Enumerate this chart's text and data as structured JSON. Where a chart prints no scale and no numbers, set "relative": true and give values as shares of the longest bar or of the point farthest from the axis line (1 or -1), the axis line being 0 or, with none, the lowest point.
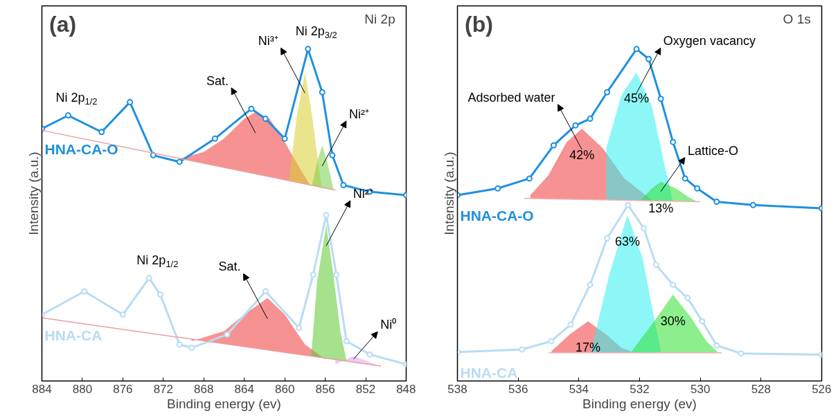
{
  "chart_data": [
    {
      "type": "line",
      "title": "(a)",
      "subtitle": "Ni 2p",
      "xlabel": "Binding energy (ev)",
      "ylabel": "Intensity (a.u.)",
      "relative": true,
      "xlim": [
        884,
        848
      ],
      "xticks": [
        884,
        880,
        876,
        872,
        868,
        864,
        860,
        856,
        852,
        848
      ],
      "series": [
        {
          "name": "HNA-CA-O",
          "color": "#1e90e0",
          "marker": "circle",
          "x": [
            884.0,
            881.4,
            878.1,
            875.3,
            873.0,
            870.4,
            866.9,
            863.3,
            861.9,
            860.0,
            857.7,
            856.3,
            855.3,
            854.2,
            851.6,
            848.0
          ],
          "values": [
            0.76,
            0.8,
            0.75,
            0.84,
            0.68,
            0.66,
            0.73,
            0.82,
            0.79,
            0.73,
            1.0,
            0.87,
            0.68,
            0.59,
            0.57,
            0.56
          ]
        },
        {
          "name": "HNA-CA",
          "color": "#b8dcf5",
          "marker": "circle",
          "x": [
            884.0,
            879.8,
            876.0,
            873.4,
            872.3,
            870.4,
            869.2,
            865.7,
            861.9,
            858.6,
            857.2,
            855.9,
            854.9,
            853.9,
            851.6,
            848.0
          ],
          "values": [
            0.2,
            0.27,
            0.2,
            0.31,
            0.26,
            0.11,
            0.1,
            0.14,
            0.27,
            0.16,
            0.32,
            0.5,
            0.32,
            0.12,
            0.08,
            0.05
          ]
        },
        {
          "type": "line",
          "color": "#e8a0a0",
          "x": [
            884,
            855
          ],
          "values": [
            0.755,
            0.575
          ]
        },
        {
          "type": "line",
          "color": "#e8a0a0",
          "x": [
            884,
            850.5
          ],
          "values": [
            0.19,
            0.045
          ]
        },
        {
          "type": "area",
          "name": "Sat.",
          "color": "#f03838",
          "x": [
            870.4,
            868,
            866,
            864,
            862.9,
            861.5,
            860,
            858.5,
            857.5
          ],
          "values": [
            0.67,
            0.69,
            0.73,
            0.79,
            0.81,
            0.79,
            0.72,
            0.64,
            0.59
          ]
        },
        {
          "type": "area",
          "name": "Ni³⁺",
          "color": "#d8d030",
          "x": [
            859.6,
            858.8,
            858.0,
            857.3,
            856.4
          ],
          "values": [
            0.6,
            0.8,
            0.93,
            0.8,
            0.59
          ]
        },
        {
          "type": "area",
          "name": "Ni²⁺",
          "color": "#78d048",
          "x": [
            857.3,
            856.8,
            856.3,
            855.8,
            855.2
          ],
          "values": [
            0.59,
            0.66,
            0.71,
            0.66,
            0.58
          ]
        },
        {
          "type": "area",
          "name": "Sat.",
          "color": "#f03838",
          "x": [
            869.2,
            866,
            864,
            861.7,
            860,
            858,
            856
          ],
          "values": [
            0.12,
            0.15,
            0.2,
            0.25,
            0.2,
            0.11,
            0.065
          ]
        },
        {
          "type": "area",
          "name": "Ni²⁺",
          "color": "#5cc830",
          "x": [
            857.4,
            856.8,
            855.9,
            855.2,
            854.5,
            853.9
          ],
          "values": [
            0.07,
            0.3,
            0.47,
            0.32,
            0.15,
            0.06
          ]
        },
        {
          "type": "area",
          "name": "Ni⁰",
          "color": "#e0a0e8",
          "x": [
            855,
            853.2,
            851
          ],
          "values": [
            0.05,
            0.075,
            0.05
          ]
        }
      ],
      "annotations": [
        {
          "text": "Ni 2p$_{1/2}$",
          "x": 881.4,
          "y": 0.8
        },
        {
          "text": "Ni 2p$_{3/2}$",
          "x": 857.7,
          "y": 1.0
        },
        {
          "text": "Ni 2p$_{1/2}$",
          "x": 873.4,
          "y": 0.31
        }
      ]
    },
    {
      "type": "line",
      "title": "(b)",
      "subtitle": "O 1s",
      "xlabel": "Binding energy (ev)",
      "ylabel": "Intensity (a.u.)",
      "relative": true,
      "xlim": [
        538,
        526
      ],
      "xticks": [
        538,
        536,
        534,
        532,
        530,
        528,
        526
      ],
      "series": [
        {
          "name": "HNA-CA-O",
          "color": "#1e90e0",
          "marker": "circle",
          "x": [
            538.0,
            536.67,
            535.63,
            534.83,
            534.11,
            533.63,
            533.07,
            532.1,
            531.7,
            531.3,
            530.9,
            530.5,
            530.1,
            529.46,
            528.26,
            526.0
          ],
          "values": [
            0.56,
            0.58,
            0.61,
            0.71,
            0.77,
            0.79,
            0.87,
            1.0,
            0.97,
            0.85,
            0.72,
            0.61,
            0.58,
            0.54,
            0.53,
            0.52
          ]
        },
        {
          "name": "HNA-CA",
          "color": "#b8dcf5",
          "marker": "circle",
          "x": [
            538.0,
            535.87,
            534.91,
            534.27,
            533.63,
            533.07,
            532.38,
            531.86,
            531.46,
            530.9,
            530.42,
            529.94,
            529.46,
            528.66,
            526.0
          ],
          "values": [
            0.087,
            0.095,
            0.12,
            0.17,
            0.29,
            0.43,
            0.53,
            0.46,
            0.35,
            0.29,
            0.25,
            0.18,
            0.107,
            0.083,
            0.079
          ]
        },
        {
          "type": "line",
          "color": "#f0b0b0",
          "x": [
            535.8,
            530.0
          ],
          "values": [
            0.55,
            0.54
          ]
        },
        {
          "type": "line",
          "color": "#f0b0b0",
          "x": [
            535.0,
            529.3
          ],
          "values": [
            0.085,
            0.085
          ]
        },
        {
          "type": "area",
          "name": "Adsorbed water",
          "color": "#f03838",
          "x": [
            535.6,
            535.0,
            534.4,
            533.9,
            533.2,
            532.5,
            531.6
          ],
          "values": [
            0.56,
            0.62,
            0.72,
            0.76,
            0.7,
            0.61,
            0.545
          ]
        },
        {
          "type": "area",
          "name": "Oxygen vacancy",
          "color": "#30f0f0",
          "x": [
            533.1,
            532.6,
            532.1,
            531.6,
            531.2,
            530.9
          ],
          "values": [
            0.7,
            0.86,
            0.93,
            0.83,
            0.66,
            0.54
          ]
        },
        {
          "type": "area",
          "name": "Lattice-O",
          "color": "#30e030",
          "x": [
            532.0,
            531.6,
            531.3,
            530.8,
            530.4,
            530.1
          ],
          "values": [
            0.54,
            0.58,
            0.6,
            0.58,
            0.555,
            0.54
          ]
        },
        {
          "type": "area",
          "color": "#f03838",
          "x": [
            534.9,
            534.3,
            533.7,
            533.1,
            532.6,
            532.3
          ],
          "values": [
            0.09,
            0.14,
            0.18,
            0.14,
            0.1,
            0.09
          ]
        },
        {
          "type": "area",
          "color": "#30f0f0",
          "x": [
            533.6,
            533.0,
            532.4,
            531.9,
            531.5,
            531.3
          ],
          "values": [
            0.09,
            0.32,
            0.5,
            0.37,
            0.18,
            0.09
          ]
        },
        {
          "type": "area",
          "color": "#30e030",
          "x": [
            532.3,
            531.6,
            530.9,
            530.3,
            529.8,
            529.4
          ],
          "values": [
            0.085,
            0.17,
            0.26,
            0.19,
            0.12,
            0.085
          ]
        }
      ],
      "annotations": [
        {
          "text": "42%",
          "x": 533.9,
          "y": 0.76
        },
        {
          "text": "45%",
          "x": 532.1,
          "y": 0.93
        },
        {
          "text": "13%",
          "x": 531.3,
          "y": 0.6
        },
        {
          "text": "63%",
          "x": 532.4,
          "y": 0.5
        },
        {
          "text": "17%",
          "x": 533.7,
          "y": 0.18
        },
        {
          "text": "30%",
          "x": 530.9,
          "y": 0.26
        }
      ]
    }
  ]
}
